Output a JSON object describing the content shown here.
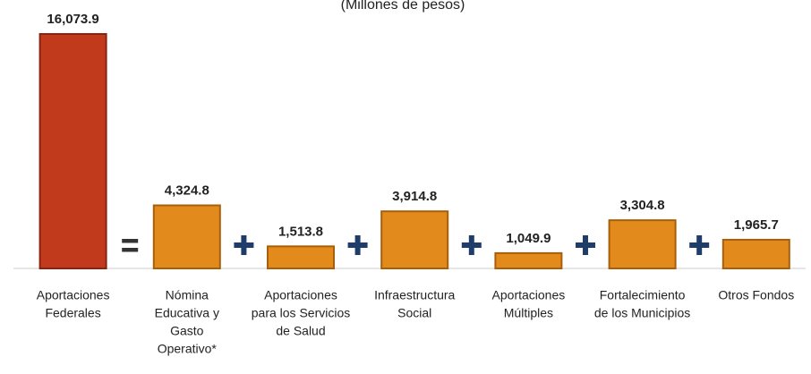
{
  "chart_data": {
    "type": "bar",
    "subtitle": "(Millones de pesos)",
    "categories": [
      [
        "Aportaciones",
        "Federales"
      ],
      [
        "Nómina",
        "Educativa y",
        "Gasto",
        "Operativo*"
      ],
      [
        "Aportaciones",
        "para los Servicios",
        "de Salud"
      ],
      [
        "Infraestructura",
        "Social"
      ],
      [
        "Aportaciones",
        "Múltiples"
      ],
      [
        "Fortalecimiento",
        "de los Municipios"
      ],
      [
        "Otros Fondos"
      ]
    ],
    "values": [
      16073.9,
      4324.8,
      1513.8,
      3914.8,
      1049.9,
      3304.8,
      1965.7
    ],
    "value_labels": [
      "16,073.9",
      "4,324.8",
      "1,513.8",
      "3,914.8",
      "1,049.9",
      "3,304.8",
      "1,965.7"
    ],
    "colors": [
      "#c23a1c",
      "#e38a1c",
      "#e38a1c",
      "#e38a1c",
      "#e38a1c",
      "#e38a1c",
      "#e38a1c"
    ]
  }
}
